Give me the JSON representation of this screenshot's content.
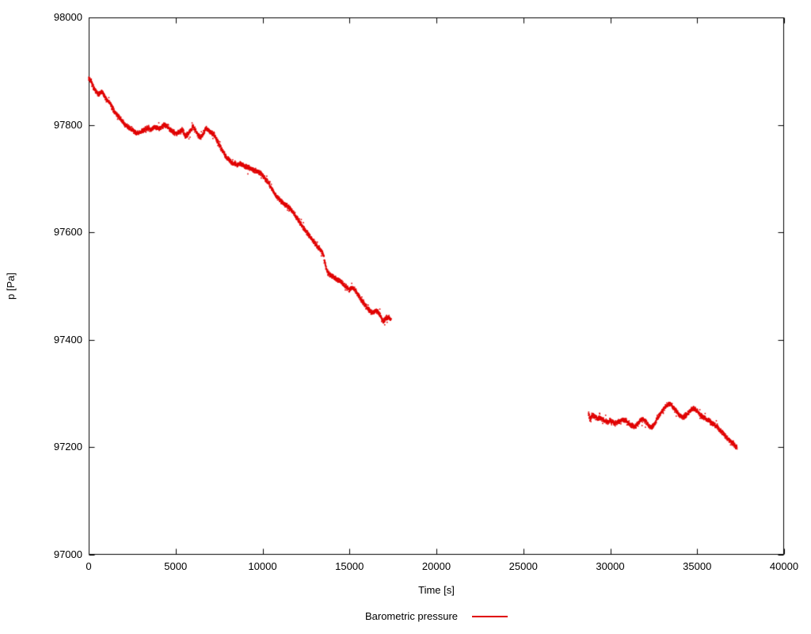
{
  "window": {
    "background": "#ffffff"
  },
  "colors": {
    "axis": "#000000",
    "text": "#000000",
    "series_red": "#e00000"
  },
  "chart_data": {
    "type": "scatter",
    "title": "",
    "xlabel": "Time [s]",
    "ylabel": "p [Pa]",
    "xlim": [
      0,
      40000
    ],
    "ylim": [
      97000,
      98000
    ],
    "x_ticks": [
      0,
      5000,
      10000,
      15000,
      20000,
      25000,
      30000,
      35000,
      40000
    ],
    "y_ticks": [
      97000,
      97200,
      97400,
      97600,
      97800,
      98000
    ],
    "grid": false,
    "tick_style": "inward-mirrored",
    "legend_position": "bottom-center-outside",
    "point_jitter_pa": 5,
    "series": [
      {
        "name": "Barometric pressure",
        "color": "#e00000",
        "marker": "dot",
        "segments": [
          {
            "points": [
              [
                0,
                97888
              ],
              [
                150,
                97880
              ],
              [
                300,
                97868
              ],
              [
                450,
                97860
              ],
              [
                600,
                97857
              ],
              [
                750,
                97862
              ],
              [
                900,
                97855
              ],
              [
                1050,
                97845
              ],
              [
                1200,
                97842
              ],
              [
                1350,
                97832
              ],
              [
                1500,
                97824
              ],
              [
                1650,
                97818
              ],
              [
                1800,
                97812
              ],
              [
                1950,
                97806
              ],
              [
                2100,
                97800
              ],
              [
                2250,
                97797
              ],
              [
                2400,
                97793
              ],
              [
                2550,
                97789
              ],
              [
                2700,
                97786
              ],
              [
                2850,
                97785
              ],
              [
                3000,
                97787
              ],
              [
                3150,
                97790
              ],
              [
                3300,
                97793
              ],
              [
                3450,
                97794
              ],
              [
                3600,
                97791
              ],
              [
                3750,
                97797
              ],
              [
                3900,
                97794
              ],
              [
                4050,
                97793
              ],
              [
                4200,
                97796
              ],
              [
                4350,
                97800
              ],
              [
                4500,
                97799
              ],
              [
                4650,
                97793
              ],
              [
                4800,
                97788
              ],
              [
                4950,
                97786
              ],
              [
                5100,
                97784
              ],
              [
                5250,
                97788
              ],
              [
                5400,
                97791
              ],
              [
                5550,
                97778
              ],
              [
                5700,
                97783
              ],
              [
                5850,
                97790
              ],
              [
                6000,
                97797
              ],
              [
                6150,
                97790
              ],
              [
                6300,
                97780
              ],
              [
                6450,
                97777
              ],
              [
                6600,
                97785
              ],
              [
                6750,
                97794
              ],
              [
                6900,
                97790
              ],
              [
                7050,
                97785
              ],
              [
                7200,
                97783
              ],
              [
                7350,
                97773
              ],
              [
                7500,
                97764
              ],
              [
                7650,
                97755
              ],
              [
                7800,
                97746
              ],
              [
                7950,
                97739
              ],
              [
                8100,
                97734
              ],
              [
                8250,
                97730
              ],
              [
                8400,
                97727
              ],
              [
                8550,
                97726
              ],
              [
                8700,
                97728
              ],
              [
                8850,
                97726
              ],
              [
                9000,
                97723
              ],
              [
                9150,
                97721
              ],
              [
                9300,
                97719
              ],
              [
                9450,
                97717
              ],
              [
                9600,
                97715
              ],
              [
                9750,
                97713
              ],
              [
                9900,
                97710
              ],
              [
                10050,
                97704
              ],
              [
                10200,
                97698
              ],
              [
                10350,
                97691
              ],
              [
                10500,
                97683
              ],
              [
                10650,
                97674
              ],
              [
                10800,
                97667
              ],
              [
                10950,
                97662
              ],
              [
                11100,
                97657
              ],
              [
                11250,
                97653
              ],
              [
                11400,
                97650
              ],
              [
                11550,
                97646
              ],
              [
                11700,
                97640
              ],
              [
                11850,
                97633
              ],
              [
                12000,
                97626
              ],
              [
                12150,
                97618
              ],
              [
                12300,
                97611
              ],
              [
                12450,
                97604
              ],
              [
                12600,
                97598
              ],
              [
                12750,
                97591
              ],
              [
                12900,
                97585
              ],
              [
                13050,
                97578
              ],
              [
                13200,
                97572
              ],
              [
                13350,
                97567
              ],
              [
                13500,
                97558
              ],
              [
                13600,
                97541
              ],
              [
                13700,
                97529
              ],
              [
                13800,
                97523
              ],
              [
                13950,
                97519
              ],
              [
                14100,
                97516
              ],
              [
                14250,
                97513
              ],
              [
                14400,
                97511
              ],
              [
                14550,
                97507
              ],
              [
                14700,
                97502
              ],
              [
                14850,
                97497
              ],
              [
                15000,
                97493
              ],
              [
                15150,
                97497
              ],
              [
                15300,
                97494
              ],
              [
                15450,
                97487
              ],
              [
                15600,
                97479
              ],
              [
                15750,
                97471
              ],
              [
                15900,
                97464
              ],
              [
                16050,
                97458
              ],
              [
                16200,
                97453
              ],
              [
                16350,
                97450
              ],
              [
                16500,
                97455
              ],
              [
                16650,
                97451
              ],
              [
                16800,
                97444
              ],
              [
                16950,
                97434
              ],
              [
                17100,
                97440
              ],
              [
                17250,
                97442
              ],
              [
                17400,
                97437
              ]
            ]
          },
          {
            "points": [
              [
                28750,
                97263
              ],
              [
                28850,
                97251
              ],
              [
                28950,
                97261
              ],
              [
                29100,
                97257
              ],
              [
                29250,
                97253
              ],
              [
                29400,
                97255
              ],
              [
                29550,
                97252
              ],
              [
                29700,
                97249
              ],
              [
                29850,
                97247
              ],
              [
                30000,
                97249
              ],
              [
                30150,
                97247
              ],
              [
                30300,
                97245
              ],
              [
                30450,
                97247
              ],
              [
                30600,
                97250
              ],
              [
                30750,
                97252
              ],
              [
                30900,
                97249
              ],
              [
                31050,
                97245
              ],
              [
                31200,
                97241
              ],
              [
                31350,
                97238
              ],
              [
                31500,
                97240
              ],
              [
                31650,
                97246
              ],
              [
                31800,
                97252
              ],
              [
                31950,
                97250
              ],
              [
                32100,
                97245
              ],
              [
                32250,
                97239
              ],
              [
                32400,
                97237
              ],
              [
                32550,
                97244
              ],
              [
                32700,
                97253
              ],
              [
                32850,
                97261
              ],
              [
                33000,
                97268
              ],
              [
                33150,
                97274
              ],
              [
                33300,
                97279
              ],
              [
                33450,
                97281
              ],
              [
                33600,
                97276
              ],
              [
                33750,
                97269
              ],
              [
                33900,
                97263
              ],
              [
                34050,
                97258
              ],
              [
                34200,
                97256
              ],
              [
                34350,
                97259
              ],
              [
                34500,
                97264
              ],
              [
                34650,
                97270
              ],
              [
                34800,
                97273
              ],
              [
                34950,
                97269
              ],
              [
                35100,
                97263
              ],
              [
                35250,
                97258
              ],
              [
                35400,
                97256
              ],
              [
                35550,
                97252
              ],
              [
                35700,
                97249
              ],
              [
                35850,
                97245
              ],
              [
                36000,
                97242
              ],
              [
                36150,
                97238
              ],
              [
                36300,
                97233
              ],
              [
                36450,
                97228
              ],
              [
                36600,
                97222
              ],
              [
                36750,
                97217
              ],
              [
                36900,
                97212
              ],
              [
                37050,
                97207
              ],
              [
                37200,
                97202
              ],
              [
                37300,
                97199
              ]
            ]
          }
        ]
      }
    ]
  }
}
